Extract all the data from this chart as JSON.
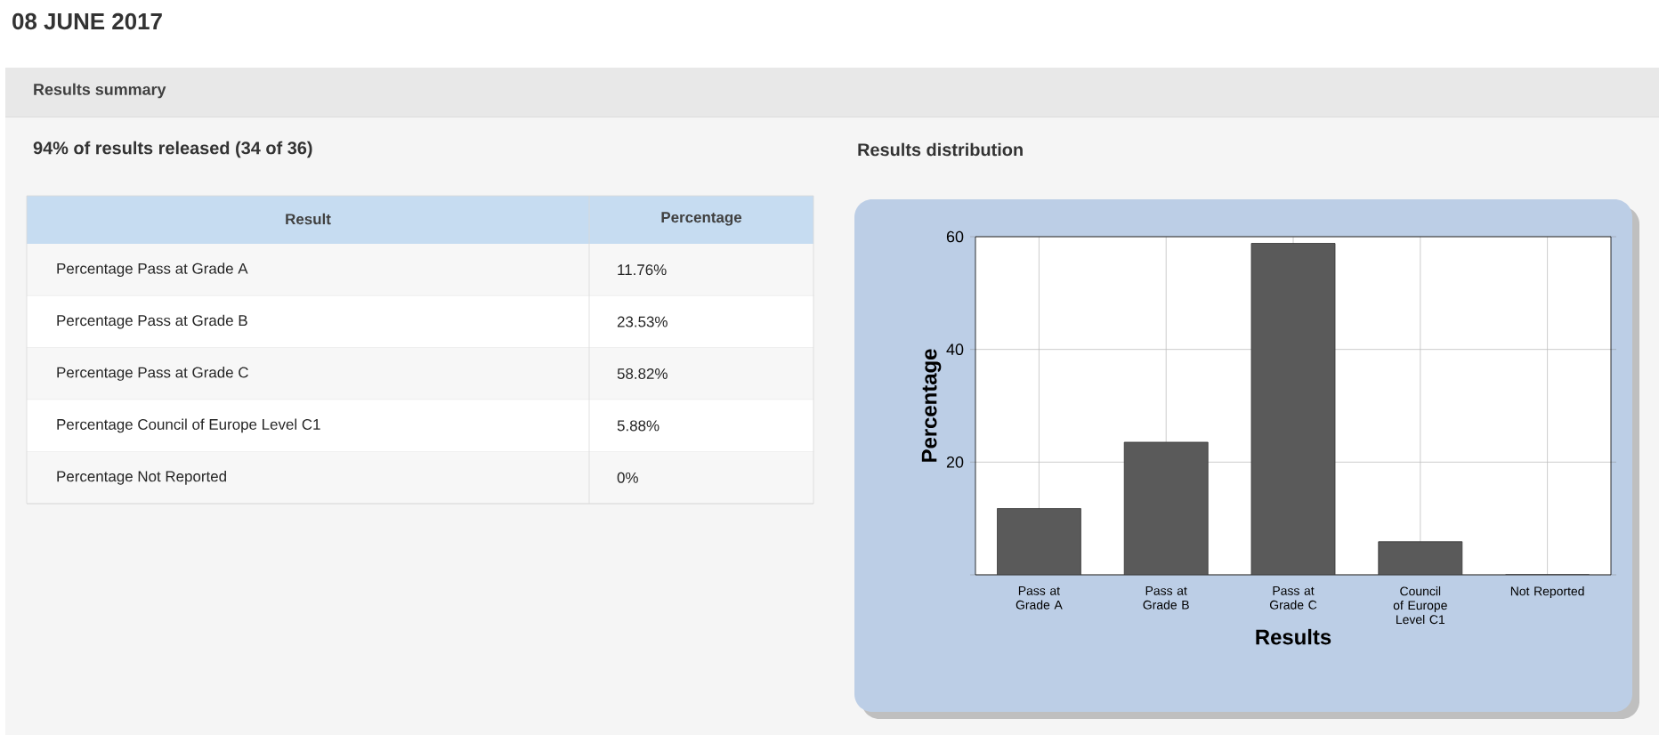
{
  "chart_data": {
    "type": "bar",
    "title": "08 JUNE 2017",
    "subtitle": "Results summary",
    "xlabel": "Results",
    "ylabel": "Percentage",
    "categories": [
      "Pass at Grade A",
      "Pass at Grade B",
      "Pass at Grade C",
      "Council of Europe Level C1",
      "Not Reported"
    ],
    "values": [
      11.76,
      23.53,
      58.82,
      5.88,
      0
    ],
    "color": "#5a5a5a",
    "ylim": [
      0,
      60
    ],
    "yticks": [
      {
        "value": 0,
        "label": null
      },
      20,
      40,
      60
    ],
    "grid": true,
    "annotations": [
      "94% of results released (34 of 36)",
      "Results distribution",
      "Result",
      "Percentage",
      "Percentage Pass at Grade A",
      "Percentage Pass at Grade B",
      "Percentage Pass at Grade C",
      "Percentage Council of Europe Level C1",
      "Percentage Not Reported",
      "11.76%",
      "23.53%",
      "58.82%",
      "5.88%",
      "0%"
    ]
  }
}
